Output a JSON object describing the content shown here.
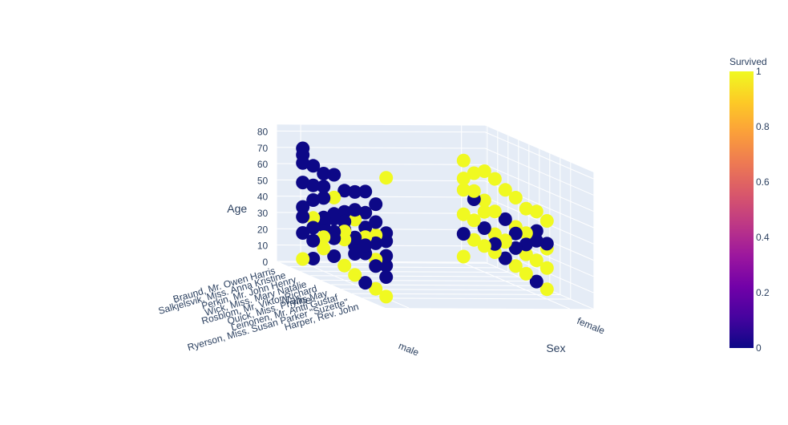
{
  "chart_data": {
    "type": "scatter3d",
    "title": "",
    "axes": {
      "x": {
        "title": "Name",
        "tick_labels": [
          "Braund, Mr. Owen Harris",
          "Salkjelsvik, Miss. Anna Kristine",
          "Perkin, Mr. John Henry",
          "Wick, Miss. Mary Natalie",
          "Rosblom, Mr. Viktor Richard",
          "Quick, Miss. Phyllis May",
          "Leinonen, Mr. Antti Gustaf",
          "Ryerson, Miss. Susan Parker \"Suzette\"",
          "Harper, Rev. John"
        ]
      },
      "y": {
        "title": "Sex",
        "tick_labels": [
          "male",
          "female"
        ]
      },
      "z": {
        "title": "Age",
        "tick_labels": [
          "0",
          "10",
          "20",
          "30",
          "40",
          "50",
          "60",
          "70",
          "80"
        ],
        "range": [
          0,
          80
        ]
      }
    },
    "grid": true,
    "colorbar": {
      "title": "Survived",
      "range": [
        0,
        1
      ],
      "tick_labels": [
        "0",
        "0.2",
        "0.4",
        "0.6",
        "0.8",
        "1"
      ],
      "colors": [
        "#0d0887",
        "#46039f",
        "#7201a8",
        "#9c179e",
        "#bd3786",
        "#d8576b",
        "#ed7953",
        "#fb9f3a",
        "#fdca26",
        "#f0f921"
      ]
    },
    "series": [
      {
        "marker_color_low": "#0d0887",
        "marker_color_high": "#f0f921",
        "points": [
          {
            "name_index": 0,
            "sex": "male",
            "age": 70,
            "survived": 0
          },
          {
            "name_index": 0,
            "sex": "male",
            "age": 66,
            "survived": 0
          },
          {
            "name_index": 0,
            "sex": "male",
            "age": 61,
            "survived": 0
          },
          {
            "name_index": 1,
            "sex": "male",
            "age": 62,
            "survived": 0
          },
          {
            "name_index": 2,
            "sex": "male",
            "age": 60,
            "survived": 0
          },
          {
            "name_index": 3,
            "sex": "male",
            "age": 62,
            "survived": 0
          },
          {
            "name_index": 4,
            "sex": "male",
            "age": 55,
            "survived": 0
          },
          {
            "name_index": 5,
            "sex": "male",
            "age": 57,
            "survived": 0
          },
          {
            "name_index": 6,
            "sex": "male",
            "age": 60,
            "survived": 0
          },
          {
            "name_index": 8,
            "sex": "male",
            "age": 74,
            "survived": 1
          },
          {
            "name_index": 7,
            "sex": "male",
            "age": 55,
            "survived": 0
          },
          {
            "name_index": 1,
            "sex": "male",
            "age": 50,
            "survived": 0
          },
          {
            "name_index": 2,
            "sex": "male",
            "age": 45,
            "survived": 0
          },
          {
            "name_index": 3,
            "sex": "male",
            "age": 48,
            "survived": 1
          },
          {
            "name_index": 4,
            "sex": "male",
            "age": 42,
            "survived": 0
          },
          {
            "name_index": 5,
            "sex": "male",
            "age": 40,
            "survived": 1
          },
          {
            "name_index": 6,
            "sex": "male",
            "age": 38,
            "survived": 0
          },
          {
            "name_index": 7,
            "sex": "male",
            "age": 36,
            "survived": 1
          },
          {
            "name_index": 8,
            "sex": "male",
            "age": 35,
            "survived": 0
          },
          {
            "name_index": 0,
            "sex": "male",
            "age": 34,
            "survived": 0
          },
          {
            "name_index": 1,
            "sex": "male",
            "age": 30,
            "survived": 1
          },
          {
            "name_index": 2,
            "sex": "male",
            "age": 28,
            "survived": 0
          },
          {
            "name_index": 3,
            "sex": "male",
            "age": 27,
            "survived": 0
          },
          {
            "name_index": 4,
            "sex": "male",
            "age": 25,
            "survived": 1
          },
          {
            "name_index": 5,
            "sex": "male",
            "age": 24,
            "survived": 0
          },
          {
            "name_index": 6,
            "sex": "male",
            "age": 22,
            "survived": 0
          },
          {
            "name_index": 7,
            "sex": "male",
            "age": 21,
            "survived": 1
          },
          {
            "name_index": 8,
            "sex": "male",
            "age": 20,
            "survived": 0
          },
          {
            "name_index": 0,
            "sex": "male",
            "age": 18,
            "survived": 0
          },
          {
            "name_index": 1,
            "sex": "male",
            "age": 16,
            "survived": 0
          },
          {
            "name_index": 2,
            "sex": "male",
            "age": 14,
            "survived": 1
          },
          {
            "name_index": 3,
            "sex": "male",
            "age": 12,
            "survived": 0
          },
          {
            "name_index": 4,
            "sex": "male",
            "age": 9,
            "survived": 1
          },
          {
            "name_index": 5,
            "sex": "male",
            "age": 6,
            "survived": 1
          },
          {
            "name_index": 6,
            "sex": "male",
            "age": 4,
            "survived": 0
          },
          {
            "name_index": 7,
            "sex": "male",
            "age": 3,
            "survived": 1
          },
          {
            "name_index": 8,
            "sex": "male",
            "age": 1,
            "survived": 1
          },
          {
            "name_index": 0,
            "sex": "male",
            "age": 2,
            "survived": 1
          },
          {
            "name_index": 1,
            "sex": "male",
            "age": 5,
            "survived": 0
          },
          {
            "name_index": 2,
            "sex": "male",
            "age": 33,
            "survived": 0
          },
          {
            "name_index": 3,
            "sex": "male",
            "age": 38,
            "survived": 0
          },
          {
            "name_index": 4,
            "sex": "male",
            "age": 31,
            "survived": 0
          },
          {
            "name_index": 5,
            "sex": "male",
            "age": 29,
            "survived": 0
          },
          {
            "name_index": 6,
            "sex": "male",
            "age": 47,
            "survived": 0
          },
          {
            "name_index": 7,
            "sex": "male",
            "age": 44,
            "survived": 0
          },
          {
            "name_index": 8,
            "sex": "male",
            "age": 26,
            "survived": 0
          },
          {
            "name_index": 8,
            "sex": "male",
            "age": 13,
            "survived": 0
          },
          {
            "name_index": 7,
            "sex": "male",
            "age": 17,
            "survived": 0
          },
          {
            "name_index": 6,
            "sex": "male",
            "age": 32,
            "survived": 1
          },
          {
            "name_index": 5,
            "sex": "male",
            "age": 19,
            "survived": 0
          },
          {
            "name_index": 4,
            "sex": "male",
            "age": 36,
            "survived": 0
          },
          {
            "name_index": 3,
            "sex": "male",
            "age": 23,
            "survived": 0
          },
          {
            "name_index": 2,
            "sex": "male",
            "age": 52,
            "survived": 0
          },
          {
            "name_index": 1,
            "sex": "male",
            "age": 41,
            "survived": 0
          },
          {
            "name_index": 0,
            "sex": "male",
            "age": 49,
            "survived": 0
          },
          {
            "name_index": 0,
            "sex": "male",
            "age": 28,
            "survived": 0
          },
          {
            "name_index": 1,
            "sex": "male",
            "age": 24,
            "survived": 0
          },
          {
            "name_index": 2,
            "sex": "male",
            "age": 21,
            "survived": 1
          },
          {
            "name_index": 3,
            "sex": "male",
            "age": 35,
            "survived": 0
          },
          {
            "name_index": 4,
            "sex": "male",
            "age": 30,
            "survived": 1
          },
          {
            "name_index": 5,
            "sex": "male",
            "age": 46,
            "survived": 0
          },
          {
            "name_index": 6,
            "sex": "male",
            "age": 27,
            "survived": 0
          },
          {
            "name_index": 7,
            "sex": "male",
            "age": 31,
            "survived": 0
          },
          {
            "name_index": 8,
            "sex": "male",
            "age": 40,
            "survived": 0
          },
          {
            "name_index": 0,
            "sex": "female",
            "age": 63,
            "survived": 1
          },
          {
            "name_index": 1,
            "sex": "female",
            "age": 58,
            "survived": 1
          },
          {
            "name_index": 2,
            "sex": "female",
            "age": 62,
            "survived": 1
          },
          {
            "name_index": 3,
            "sex": "female",
            "age": 60,
            "survived": 1
          },
          {
            "name_index": 4,
            "sex": "female",
            "age": 56,
            "survived": 1
          },
          {
            "name_index": 5,
            "sex": "female",
            "age": 54,
            "survived": 1
          },
          {
            "name_index": 6,
            "sex": "female",
            "age": 50,
            "survived": 1
          },
          {
            "name_index": 7,
            "sex": "female",
            "age": 51,
            "survived": 1
          },
          {
            "name_index": 8,
            "sex": "female",
            "age": 48,
            "survived": 1
          },
          {
            "name_index": 0,
            "sex": "female",
            "age": 45,
            "survived": 1
          },
          {
            "name_index": 1,
            "sex": "female",
            "age": 42,
            "survived": 0
          },
          {
            "name_index": 2,
            "sex": "female",
            "age": 44,
            "survived": 1
          },
          {
            "name_index": 3,
            "sex": "female",
            "age": 40,
            "survived": 1
          },
          {
            "name_index": 4,
            "sex": "female",
            "age": 38,
            "survived": 0
          },
          {
            "name_index": 5,
            "sex": "female",
            "age": 36,
            "survived": 1
          },
          {
            "name_index": 6,
            "sex": "female",
            "age": 35,
            "survived": 1
          },
          {
            "name_index": 7,
            "sex": "female",
            "age": 33,
            "survived": 0
          },
          {
            "name_index": 8,
            "sex": "female",
            "age": 31,
            "survived": 1
          },
          {
            "name_index": 0,
            "sex": "female",
            "age": 30,
            "survived": 1
          },
          {
            "name_index": 1,
            "sex": "female",
            "age": 29,
            "survived": 1
          },
          {
            "name_index": 2,
            "sex": "female",
            "age": 27,
            "survived": 0
          },
          {
            "name_index": 3,
            "sex": "female",
            "age": 26,
            "survived": 1
          },
          {
            "name_index": 4,
            "sex": "female",
            "age": 24,
            "survived": 1
          },
          {
            "name_index": 5,
            "sex": "female",
            "age": 23,
            "survived": 0
          },
          {
            "name_index": 6,
            "sex": "female",
            "age": 22,
            "survived": 1
          },
          {
            "name_index": 7,
            "sex": "female",
            "age": 21,
            "survived": 1
          },
          {
            "name_index": 8,
            "sex": "female",
            "age": 19,
            "survived": 1
          },
          {
            "name_index": 0,
            "sex": "female",
            "age": 18,
            "survived": 0
          },
          {
            "name_index": 1,
            "sex": "female",
            "age": 17,
            "survived": 1
          },
          {
            "name_index": 2,
            "sex": "female",
            "age": 16,
            "survived": 1
          },
          {
            "name_index": 3,
            "sex": "female",
            "age": 15,
            "survived": 1
          },
          {
            "name_index": 4,
            "sex": "female",
            "age": 14,
            "survived": 0
          },
          {
            "name_index": 5,
            "sex": "female",
            "age": 12,
            "survived": 1
          },
          {
            "name_index": 6,
            "sex": "female",
            "age": 10,
            "survived": 1
          },
          {
            "name_index": 7,
            "sex": "female",
            "age": 8,
            "survived": 0
          },
          {
            "name_index": 8,
            "sex": "female",
            "age": 6,
            "survived": 1
          },
          {
            "name_index": 0,
            "sex": "female",
            "age": 4,
            "survived": 1
          },
          {
            "name_index": 8,
            "sex": "female",
            "age": 34,
            "survived": 0
          },
          {
            "name_index": 7,
            "sex": "female",
            "age": 39,
            "survived": 0
          },
          {
            "name_index": 6,
            "sex": "female",
            "age": 28,
            "survived": 0
          },
          {
            "name_index": 5,
            "sex": "female",
            "age": 32,
            "survived": 0
          },
          {
            "name_index": 4,
            "sex": "female",
            "age": 25,
            "survived": 1
          },
          {
            "name_index": 3,
            "sex": "female",
            "age": 20,
            "survived": 0
          },
          {
            "name_index": 2,
            "sex": "female",
            "age": 37,
            "survived": 1
          },
          {
            "name_index": 1,
            "sex": "female",
            "age": 47,
            "survived": 1
          },
          {
            "name_index": 0,
            "sex": "female",
            "age": 52,
            "survived": 1
          }
        ]
      }
    ]
  }
}
